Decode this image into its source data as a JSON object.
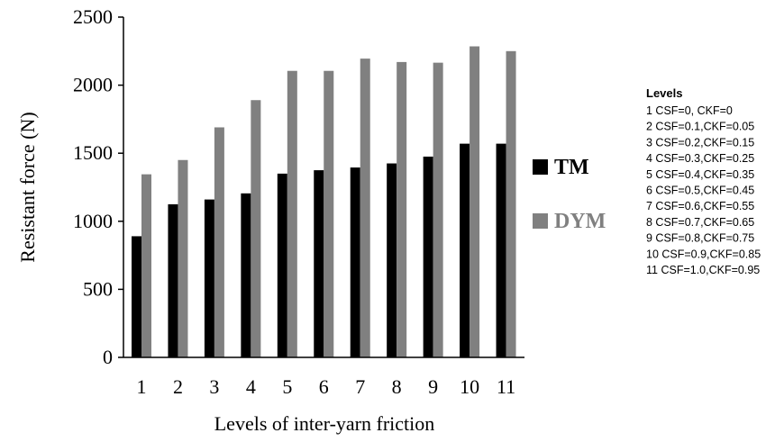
{
  "chart_data": {
    "type": "bar",
    "title": "",
    "xlabel": "Levels of inter-yarn friction",
    "ylabel": "Resistant force (N)",
    "ylim": [
      0,
      2500
    ],
    "yticks": [
      "0",
      "500",
      "1000",
      "1500",
      "2000",
      "2500"
    ],
    "grid": false,
    "categories": [
      "1",
      "2",
      "3",
      "4",
      "5",
      "6",
      "7",
      "8",
      "9",
      "10",
      "11"
    ],
    "series": [
      {
        "name": "TM",
        "color": "#000000",
        "values": [
          890,
          1125,
          1160,
          1205,
          1350,
          1375,
          1395,
          1425,
          1475,
          1570,
          1570
        ]
      },
      {
        "name": "DYM",
        "color": "#808080",
        "values": [
          1345,
          1450,
          1690,
          1890,
          2105,
          2105,
          2195,
          2170,
          2165,
          2285,
          2250
        ]
      }
    ],
    "legend_position": "right",
    "levels_note": {
      "title": "Levels",
      "items": [
        "1 CSF=0, CKF=0",
        "2 CSF=0.1,CKF=0.05",
        "3 CSF=0.2,CKF=0.15",
        "4 CSF=0.3,CKF=0.25",
        "5 CSF=0.4,CKF=0.35",
        "6 CSF=0.5,CKF=0.45",
        "7 CSF=0.6,CKF=0.55",
        "8 CSF=0.7,CKF=0.65",
        "9 CSF=0.8,CKF=0.75",
        "10 CSF=0.9,CKF=0.85",
        "11 CSF=1.0,CKF=0.95"
      ]
    }
  }
}
